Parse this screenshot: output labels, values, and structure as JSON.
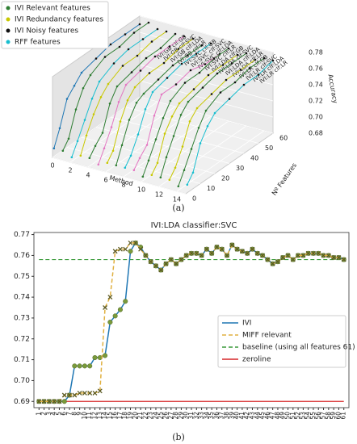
{
  "chart_data": [
    {
      "type": "line3d",
      "caption": "(a)",
      "xlabel": "Method",
      "ylabel": "Nº Features",
      "zlabel": "Accuracy",
      "xlim": [
        0,
        15
      ],
      "xticks": [
        0,
        2,
        4,
        6,
        8,
        10,
        12,
        14
      ],
      "ylim": [
        0,
        60
      ],
      "yticks": [
        0,
        10,
        20,
        30,
        40,
        50,
        60
      ],
      "zlim": [
        0.68,
        0.78
      ],
      "zticks": [
        0.68,
        {
          "value": 0.7,
          "label": "0.70"
        },
        0.72,
        0.74,
        0.76,
        0.78
      ],
      "legend_position": "upper left",
      "legend": [
        {
          "name": "IVI Relevant features",
          "color": "#2e7d32"
        },
        {
          "name": "IVI Redundancy features",
          "color": "#c8c800"
        },
        {
          "name": "IVI Noisy features",
          "color": "#111111"
        },
        {
          "name": "RFF features",
          "color": "#17becf"
        }
      ],
      "x": [
        1,
        5,
        10,
        15,
        20,
        30,
        40,
        50,
        60
      ],
      "series": [
        {
          "name": "IVI:GB clf:GB",
          "color": "#1f77b4",
          "values": [
            0.69,
            0.71,
            0.74,
            0.75,
            0.76,
            0.765,
            0.77,
            0.77,
            0.77
          ]
        },
        {
          "name": "IVI:GB clf:SVC",
          "color": "#2e7d32",
          "values": [
            0.69,
            0.7,
            0.73,
            0.75,
            0.76,
            0.77,
            0.77,
            0.775,
            0.775
          ]
        },
        {
          "name": "IVI:GB clf:LDA",
          "color": "#17becf",
          "values": [
            0.685,
            0.7,
            0.72,
            0.74,
            0.755,
            0.765,
            0.77,
            0.77,
            0.77
          ]
        },
        {
          "name": "IVI:GB clf:LR",
          "color": "#c8c800",
          "values": [
            0.69,
            0.71,
            0.73,
            0.745,
            0.755,
            0.765,
            0.765,
            0.77,
            0.77
          ]
        },
        {
          "name": "IVI:SVC clf:GB",
          "color": "#2e7d32",
          "values": [
            0.69,
            0.7,
            0.71,
            0.74,
            0.755,
            0.76,
            0.765,
            0.765,
            0.77
          ]
        },
        {
          "name": "IVI:SVC clf:SVC",
          "color": "#e377c2",
          "values": [
            0.685,
            0.7,
            0.72,
            0.745,
            0.76,
            0.765,
            0.77,
            0.77,
            0.77
          ]
        },
        {
          "name": "IVI:SVC clf:LDA",
          "color": "#c8c800",
          "values": [
            0.69,
            0.7,
            0.73,
            0.75,
            0.76,
            0.765,
            0.765,
            0.77,
            0.77
          ]
        },
        {
          "name": "IVI:SVC clf:LR",
          "color": "#2e7d32",
          "values": [
            0.69,
            0.71,
            0.735,
            0.75,
            0.755,
            0.76,
            0.765,
            0.765,
            0.765
          ]
        },
        {
          "name": "IVI:LDA clf:GB",
          "color": "#17becf",
          "values": [
            0.69,
            0.7,
            0.72,
            0.745,
            0.76,
            0.765,
            0.77,
            0.77,
            0.77
          ]
        },
        {
          "name": "IVI:LDA clf:SVC",
          "color": "#e377c2",
          "values": [
            0.69,
            0.7,
            0.71,
            0.74,
            0.76,
            0.76,
            0.765,
            0.76,
            0.76
          ]
        },
        {
          "name": "IVI:LDA clf:LDA",
          "color": "#2e7d32",
          "values": [
            0.685,
            0.7,
            0.72,
            0.74,
            0.755,
            0.765,
            0.765,
            0.77,
            0.77
          ]
        },
        {
          "name": "IVI:LDA clf:LR",
          "color": "#c8c800",
          "values": [
            0.69,
            0.7,
            0.73,
            0.745,
            0.755,
            0.76,
            0.765,
            0.765,
            0.765
          ]
        },
        {
          "name": "IVI:LR clf:GB",
          "color": "#2e7d32",
          "values": [
            0.69,
            0.71,
            0.73,
            0.75,
            0.76,
            0.765,
            0.77,
            0.77,
            0.77
          ]
        },
        {
          "name": "IVI:LR clf:SVC",
          "color": "#c8c800",
          "values": [
            0.69,
            0.7,
            0.72,
            0.745,
            0.755,
            0.76,
            0.765,
            0.765,
            0.765
          ]
        },
        {
          "name": "IVI:LR clf:LDA",
          "color": "#2e7d32",
          "values": [
            0.685,
            0.7,
            0.72,
            0.74,
            0.755,
            0.765,
            0.765,
            0.77,
            0.77
          ]
        },
        {
          "name": "IVI:LR clf:LR",
          "color": "#17becf",
          "values": [
            0.69,
            0.7,
            0.73,
            0.745,
            0.755,
            0.76,
            0.765,
            0.765,
            0.77
          ]
        }
      ]
    },
    {
      "type": "line",
      "caption": "(b)",
      "title": "IVI:LDA classifier:SVC",
      "xlim": [
        0,
        62
      ],
      "ylim": [
        0.687,
        0.771
      ],
      "yticks": [
        0.69,
        {
          "value": 0.7,
          "label": "0.70"
        },
        0.71,
        0.72,
        0.73,
        0.74,
        0.75,
        0.76,
        0.77
      ],
      "xticks": [
        1,
        2,
        3,
        4,
        5,
        6,
        7,
        8,
        9,
        10,
        11,
        12,
        13,
        14,
        15,
        16,
        17,
        18,
        19,
        20,
        21,
        22,
        23,
        24,
        25,
        26,
        27,
        28,
        29,
        30,
        31,
        32,
        33,
        34,
        35,
        36,
        37,
        38,
        39,
        40,
        41,
        42,
        43,
        44,
        45,
        46,
        47,
        48,
        49,
        50,
        51,
        52,
        53,
        54,
        55,
        56,
        57,
        58,
        59,
        60,
        61
      ],
      "x": [
        1,
        2,
        3,
        4,
        5,
        6,
        7,
        8,
        9,
        10,
        11,
        12,
        13,
        14,
        15,
        16,
        17,
        18,
        19,
        20,
        21,
        22,
        23,
        24,
        25,
        26,
        27,
        28,
        29,
        30,
        31,
        32,
        33,
        34,
        35,
        36,
        37,
        38,
        39,
        40,
        41,
        42,
        43,
        44,
        45,
        46,
        47,
        48,
        49,
        50,
        51,
        52,
        53,
        54,
        55,
        56,
        57,
        58,
        59,
        60,
        61
      ],
      "legend_position": "center right",
      "series": [
        {
          "name": "IVI",
          "color": "#1f77b4",
          "marker": "circle",
          "marker_color": "#7a9a3a",
          "dash": false,
          "values": [
            0.69,
            0.69,
            0.69,
            0.69,
            0.69,
            0.69,
            0.693,
            0.707,
            0.707,
            0.707,
            0.707,
            0.711,
            0.711,
            0.712,
            0.728,
            0.731,
            0.734,
            0.738,
            0.762,
            0.766,
            0.764,
            0.76,
            0.757,
            0.755,
            0.753,
            0.756,
            0.758,
            0.756,
            0.758,
            0.76,
            0.761,
            0.761,
            0.76,
            0.763,
            0.761,
            0.764,
            0.763,
            0.76,
            0.765,
            0.763,
            0.762,
            0.761,
            0.763,
            0.761,
            0.76,
            0.758,
            0.756,
            0.757,
            0.759,
            0.76,
            0.758,
            0.76,
            0.76,
            0.761,
            0.761,
            0.761,
            0.76,
            0.76,
            0.759,
            0.759,
            0.758
          ]
        },
        {
          "name": "MIFF relevant",
          "color": "#e0b040",
          "marker": "x",
          "marker_color": "#5b5a24",
          "dash": true,
          "values": [
            0.69,
            0.69,
            0.69,
            0.69,
            0.69,
            0.693,
            0.693,
            0.693,
            0.694,
            0.694,
            0.694,
            0.694,
            0.695,
            0.735,
            0.74,
            0.762,
            0.763,
            0.763,
            0.766,
            0.766,
            0.763,
            0.76,
            0.757,
            0.755,
            0.753,
            0.756,
            0.758,
            0.756,
            0.758,
            0.76,
            0.761,
            0.761,
            0.76,
            0.763,
            0.761,
            0.764,
            0.763,
            0.76,
            0.765,
            0.763,
            0.762,
            0.761,
            0.763,
            0.761,
            0.76,
            0.758,
            0.756,
            0.757,
            0.759,
            0.76,
            0.758,
            0.76,
            0.76,
            0.761,
            0.761,
            0.761,
            0.76,
            0.76,
            0.759,
            0.759,
            0.758
          ]
        }
      ],
      "reference_lines": [
        {
          "name": "baseline (using all features 61)",
          "value": 0.758,
          "color": "#3a9a3a",
          "dash": true
        },
        {
          "name": "zeroline",
          "value": 0.69,
          "color": "#d62728",
          "dash": false
        }
      ]
    }
  ]
}
